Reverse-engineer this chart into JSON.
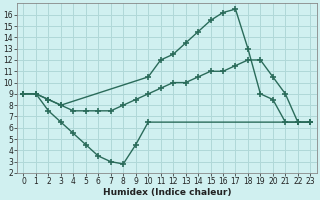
{
  "xlabel": "Humidex (Indice chaleur)",
  "bg_color": "#d0f0f0",
  "grid_color": "#b0d8d8",
  "line_color": "#2a6b5a",
  "xlim": [
    -0.5,
    23.5
  ],
  "ylim": [
    2,
    17
  ],
  "xticks": [
    0,
    1,
    2,
    3,
    4,
    5,
    6,
    7,
    8,
    9,
    10,
    11,
    12,
    13,
    14,
    15,
    16,
    17,
    18,
    19,
    20,
    21,
    22,
    23
  ],
  "yticks": [
    2,
    3,
    4,
    5,
    6,
    7,
    8,
    9,
    10,
    11,
    12,
    13,
    14,
    15,
    16
  ],
  "curve1_x": [
    0,
    1,
    2,
    3,
    10,
    11,
    12,
    13,
    14,
    15,
    16,
    17,
    18,
    19,
    20,
    21,
    22,
    23
  ],
  "curve1_y": [
    9,
    9,
    8.5,
    8,
    10.5,
    12,
    12.5,
    13.5,
    14.5,
    15.5,
    16.2,
    16.5,
    13,
    9,
    8.5,
    6.5,
    6.5,
    6.5
  ],
  "curve2_x": [
    0,
    1,
    2,
    3,
    4,
    5,
    6,
    7,
    8,
    9,
    10,
    22,
    23
  ],
  "curve2_y": [
    9,
    9,
    7.5,
    6.5,
    5.5,
    4.5,
    3.5,
    3.0,
    2.8,
    4.5,
    6.5,
    6.5,
    6.5
  ],
  "curve3_x": [
    0,
    1,
    2,
    3,
    4,
    5,
    6,
    7,
    8,
    9,
    10,
    11,
    12,
    13,
    14,
    15,
    16,
    17,
    18,
    19,
    20,
    21,
    22,
    23
  ],
  "curve3_y": [
    9,
    9,
    8.5,
    8,
    7.5,
    7.5,
    7.5,
    7.5,
    8,
    8.5,
    9,
    9.5,
    10,
    10,
    10.5,
    11,
    11,
    11.5,
    12,
    12,
    10.5,
    9,
    6.5,
    6.5
  ],
  "marker": "+",
  "markersize": 4,
  "linewidth": 1.0,
  "tick_fontsize": 5.5,
  "xlabel_fontsize": 6.5
}
